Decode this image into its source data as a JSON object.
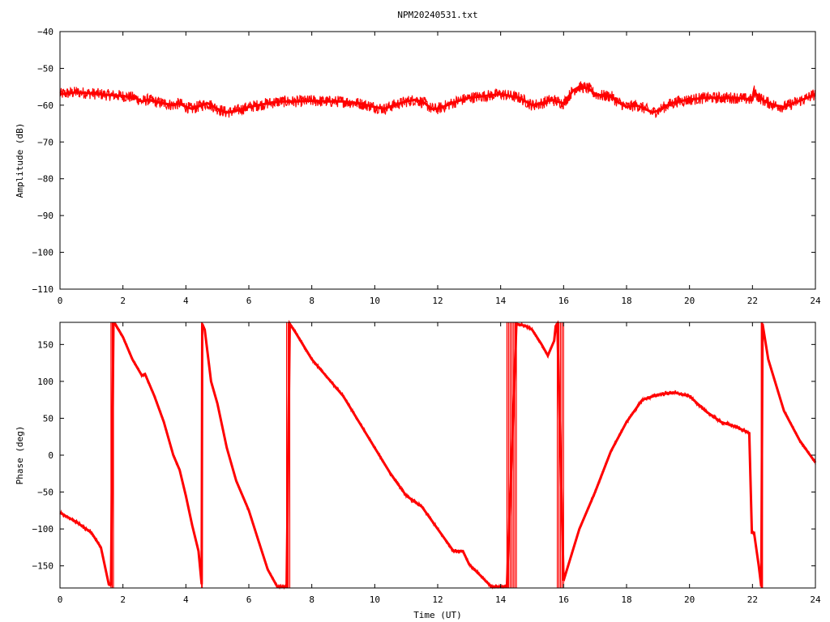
{
  "chart_data": [
    {
      "type": "line",
      "title": "NPM20240531.txt",
      "xlabel": "",
      "ylabel": "Amplitude (dB)",
      "xlim": [
        0,
        24
      ],
      "ylim": [
        -110,
        -40
      ],
      "xticks": [
        0,
        2,
        4,
        6,
        8,
        10,
        12,
        14,
        16,
        18,
        20,
        22,
        24
      ],
      "yticks": [
        -40,
        -50,
        -60,
        -70,
        -80,
        -90,
        -100,
        -110
      ],
      "grid": false,
      "series": [
        {
          "color": "#ff0000",
          "noise": 1.6,
          "x": [
            0,
            0.5,
            1,
            1.5,
            2,
            2.4,
            2.6,
            2.8,
            3,
            3.3,
            3.6,
            3.8,
            4,
            4.2,
            4.5,
            4.7,
            5,
            5.3,
            5.6,
            6,
            6.3,
            6.6,
            7,
            7.5,
            8,
            8.5,
            9,
            9.5,
            10,
            10.3,
            10.6,
            11,
            11.3,
            11.6,
            11.8,
            12,
            12.3,
            12.6,
            13,
            13.5,
            14,
            14.3,
            14.6,
            14.8,
            15,
            15.3,
            15.6,
            15.8,
            16,
            16.3,
            16.5,
            16.8,
            17,
            17.3,
            17.5,
            17.7,
            18,
            18.3,
            18.6,
            18.8,
            19,
            19.3,
            19.6,
            20,
            20.5,
            21,
            21.5,
            22,
            22.05,
            22.15,
            22.4,
            22.7,
            23,
            23.3,
            23.6,
            24
          ],
          "y": [
            -57,
            -56.5,
            -56.8,
            -57.2,
            -57.5,
            -58,
            -59,
            -58.5,
            -59,
            -59.5,
            -60,
            -59.5,
            -60.5,
            -61,
            -60,
            -59.5,
            -61,
            -62,
            -61.5,
            -60.5,
            -60,
            -59.5,
            -59,
            -59,
            -58.8,
            -59,
            -59,
            -59.5,
            -60.5,
            -61,
            -60,
            -59,
            -58.5,
            -59.5,
            -61,
            -61,
            -60,
            -59,
            -58,
            -57.5,
            -57,
            -57.5,
            -58,
            -59,
            -60,
            -59.5,
            -58.5,
            -59,
            -59.5,
            -56,
            -55,
            -55.5,
            -57,
            -57.5,
            -57.5,
            -59,
            -60.5,
            -60,
            -61,
            -62,
            -61.5,
            -60,
            -59,
            -58.5,
            -58,
            -58,
            -58,
            -58.5,
            -56,
            -57.5,
            -59,
            -60,
            -60.5,
            -59.5,
            -58.5,
            -57
          ]
        }
      ]
    },
    {
      "type": "line",
      "title": "",
      "xlabel": "Time (UT)",
      "ylabel": "Phase (deg)",
      "xlim": [
        0,
        24
      ],
      "ylim": [
        -180,
        180
      ],
      "xticks": [
        0,
        2,
        4,
        6,
        8,
        10,
        12,
        14,
        16,
        18,
        20,
        22,
        24
      ],
      "yticks": [
        150,
        100,
        50,
        0,
        -50,
        -100,
        -150
      ],
      "grid": false,
      "series": [
        {
          "color": "#ff0000",
          "noise": 3,
          "x": [
            0,
            0.5,
            1,
            1.3,
            1.55,
            1.62,
            1.7,
            1.75,
            2,
            2.3,
            2.6,
            2.7,
            3,
            3.3,
            3.6,
            3.8,
            4,
            4.2,
            4.4,
            4.5,
            4.52,
            4.6,
            4.8,
            5,
            5.3,
            5.6,
            6,
            6.3,
            6.6,
            6.9,
            7.2,
            7.3,
            7.5,
            8,
            8.5,
            9,
            9.5,
            10,
            10.5,
            11,
            11.5,
            12,
            12.5,
            12.8,
            13,
            13.4,
            13.7,
            14.2,
            14.5,
            14.8,
            15,
            15.3,
            15.5,
            15.7,
            15.75,
            15.8,
            16,
            16.5,
            17,
            17.5,
            18,
            18.5,
            19,
            19.5,
            20,
            20.5,
            21,
            21.5,
            21.9,
            21.98,
            22.05,
            22.2,
            22.28,
            22.32,
            22.5,
            23,
            23.5,
            24
          ],
          "y": [
            -78,
            -90,
            -105,
            -125,
            -175,
            -175,
            178,
            178,
            160,
            130,
            108,
            110,
            80,
            45,
            0,
            -20,
            -55,
            -95,
            -130,
            -175,
            178,
            170,
            100,
            70,
            10,
            -35,
            -75,
            -115,
            -155,
            -178,
            -178,
            178,
            165,
            130,
            105,
            80,
            45,
            10,
            -25,
            -55,
            -70,
            -100,
            -130,
            -130,
            -148,
            -165,
            -178,
            -178,
            178,
            175,
            170,
            150,
            135,
            155,
            175,
            178,
            -170,
            -100,
            -50,
            5,
            45,
            75,
            82,
            85,
            80,
            60,
            45,
            38,
            30,
            -105,
            -105,
            -150,
            -178,
            178,
            130,
            60,
            20,
            -10
          ]
        }
      ]
    }
  ]
}
